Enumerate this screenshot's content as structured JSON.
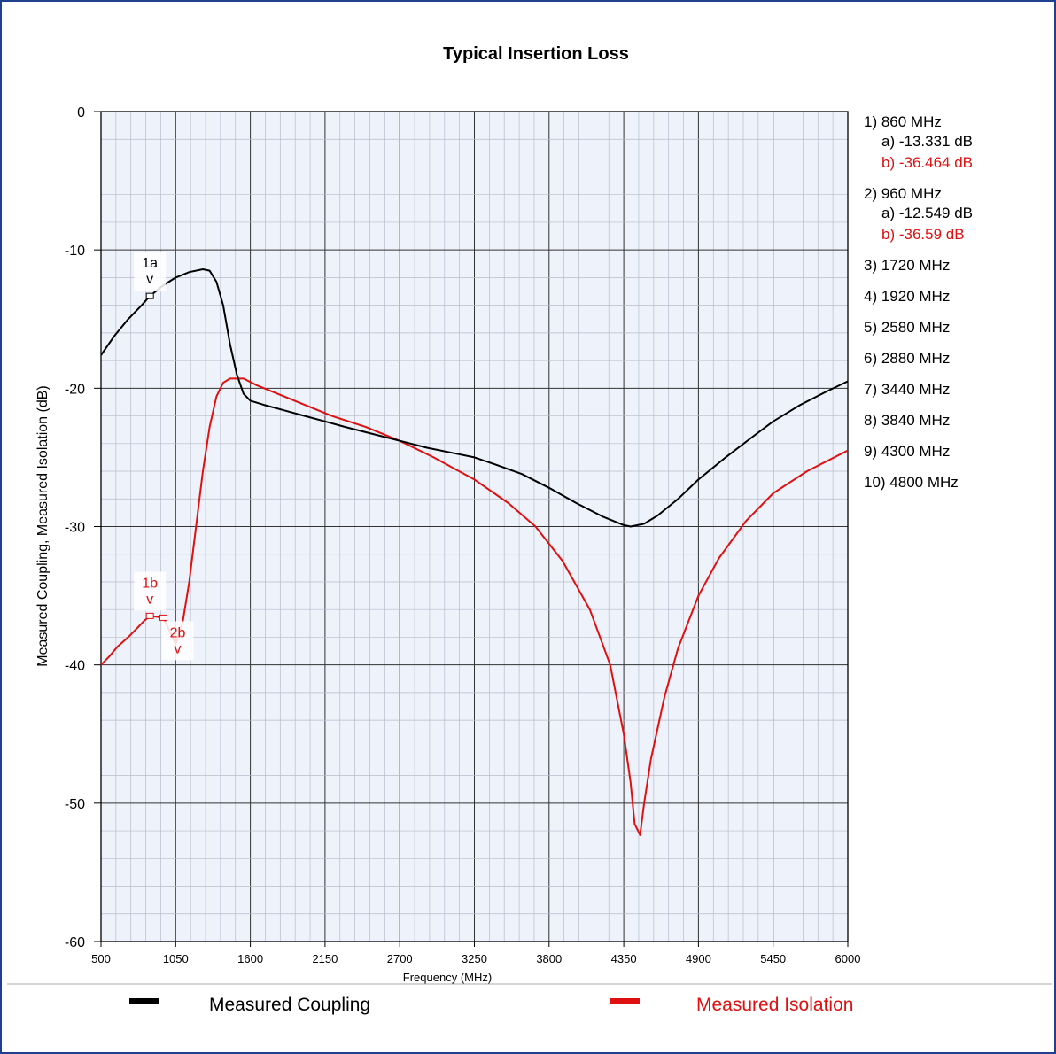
{
  "chart_data": {
    "type": "line",
    "title": "Typical Insertion Loss",
    "xlabel": "Frequency (MHz)",
    "ylabel": "Measured Coupling, Measured Isolation (dB)",
    "xlim": [
      500,
      6000
    ],
    "ylim": [
      -60,
      0
    ],
    "x_ticks": [
      "500",
      "1050",
      "1600",
      "2150",
      "2700",
      "3250",
      "3800",
      "4350",
      "4900",
      "5450",
      "6000"
    ],
    "y_ticks": [
      "0",
      "-10",
      "-20",
      "-30",
      "-40",
      "-50",
      "-60"
    ],
    "grid": true,
    "legend_position": "bottom",
    "series": [
      {
        "name": "Measured Coupling",
        "color": "#000000",
        "points": [
          [
            500,
            -17.6
          ],
          [
            600,
            -16.2
          ],
          [
            700,
            -15.0
          ],
          [
            800,
            -14.0
          ],
          [
            860,
            -13.33
          ],
          [
            960,
            -12.55
          ],
          [
            1050,
            -12.0
          ],
          [
            1150,
            -11.6
          ],
          [
            1250,
            -11.4
          ],
          [
            1300,
            -11.5
          ],
          [
            1350,
            -12.3
          ],
          [
            1400,
            -14.0
          ],
          [
            1450,
            -16.8
          ],
          [
            1500,
            -19.0
          ],
          [
            1550,
            -20.4
          ],
          [
            1600,
            -20.9
          ],
          [
            1700,
            -21.2
          ],
          [
            1850,
            -21.6
          ],
          [
            2000,
            -22.0
          ],
          [
            2150,
            -22.4
          ],
          [
            2300,
            -22.8
          ],
          [
            2500,
            -23.3
          ],
          [
            2700,
            -23.8
          ],
          [
            2900,
            -24.3
          ],
          [
            3100,
            -24.7
          ],
          [
            3250,
            -25.0
          ],
          [
            3400,
            -25.5
          ],
          [
            3600,
            -26.2
          ],
          [
            3800,
            -27.2
          ],
          [
            4000,
            -28.3
          ],
          [
            4200,
            -29.3
          ],
          [
            4350,
            -29.9
          ],
          [
            4400,
            -30.0
          ],
          [
            4500,
            -29.8
          ],
          [
            4600,
            -29.2
          ],
          [
            4750,
            -28.0
          ],
          [
            4900,
            -26.6
          ],
          [
            5100,
            -25.0
          ],
          [
            5300,
            -23.5
          ],
          [
            5450,
            -22.4
          ],
          [
            5650,
            -21.2
          ],
          [
            5850,
            -20.2
          ],
          [
            6000,
            -19.5
          ]
        ]
      },
      {
        "name": "Measured Isolation",
        "color": "#e01010",
        "points": [
          [
            500,
            -40.0
          ],
          [
            560,
            -39.4
          ],
          [
            620,
            -38.7
          ],
          [
            700,
            -38.0
          ],
          [
            760,
            -37.4
          ],
          [
            820,
            -36.8
          ],
          [
            860,
            -36.46
          ],
          [
            960,
            -36.59
          ],
          [
            1050,
            -38.5
          ],
          [
            1100,
            -37.0
          ],
          [
            1150,
            -34.0
          ],
          [
            1200,
            -30.0
          ],
          [
            1250,
            -26.0
          ],
          [
            1300,
            -22.8
          ],
          [
            1350,
            -20.6
          ],
          [
            1400,
            -19.6
          ],
          [
            1450,
            -19.3
          ],
          [
            1550,
            -19.3
          ],
          [
            1650,
            -19.8
          ],
          [
            1800,
            -20.4
          ],
          [
            2000,
            -21.2
          ],
          [
            2200,
            -22.0
          ],
          [
            2450,
            -22.8
          ],
          [
            2700,
            -23.8
          ],
          [
            2950,
            -25.0
          ],
          [
            3250,
            -26.6
          ],
          [
            3500,
            -28.3
          ],
          [
            3700,
            -30.0
          ],
          [
            3900,
            -32.5
          ],
          [
            4100,
            -36.0
          ],
          [
            4250,
            -40.0
          ],
          [
            4350,
            -45.0
          ],
          [
            4400,
            -48.5
          ],
          [
            4430,
            -51.5
          ],
          [
            4470,
            -52.3
          ],
          [
            4500,
            -50.0
          ],
          [
            4550,
            -46.8
          ],
          [
            4650,
            -42.3
          ],
          [
            4750,
            -38.8
          ],
          [
            4900,
            -35.0
          ],
          [
            5050,
            -32.3
          ],
          [
            5250,
            -29.6
          ],
          [
            5450,
            -27.6
          ],
          [
            5700,
            -26.0
          ],
          [
            6000,
            -24.5
          ]
        ]
      }
    ],
    "marker_labels": [
      {
        "text": "1a",
        "caret": "v",
        "color": "#000000",
        "x": 860,
        "y": -13.33
      },
      {
        "text": "1b",
        "caret": "v",
        "color": "#e01010",
        "x": 860,
        "y": -36.46
      },
      {
        "text": "2b",
        "caret": "v",
        "color": "#e01010",
        "x": 960,
        "y": -36.59
      }
    ],
    "marker_table": [
      {
        "label": "1) 860 MHz",
        "a": "a) -13.331 dB",
        "b": "b) -36.464 dB"
      },
      {
        "label": "2) 960 MHz",
        "a": "a) -12.549 dB",
        "b": "b) -36.59 dB"
      },
      {
        "label": "3) 1720 MHz"
      },
      {
        "label": "4) 1920 MHz"
      },
      {
        "label": "5) 2580 MHz"
      },
      {
        "label": "6) 2880 MHz"
      },
      {
        "label": "7) 3440 MHz"
      },
      {
        "label": "8) 3840 MHz"
      },
      {
        "label": "9) 4300 MHz"
      },
      {
        "label": "10) 4800 MHz"
      }
    ]
  }
}
